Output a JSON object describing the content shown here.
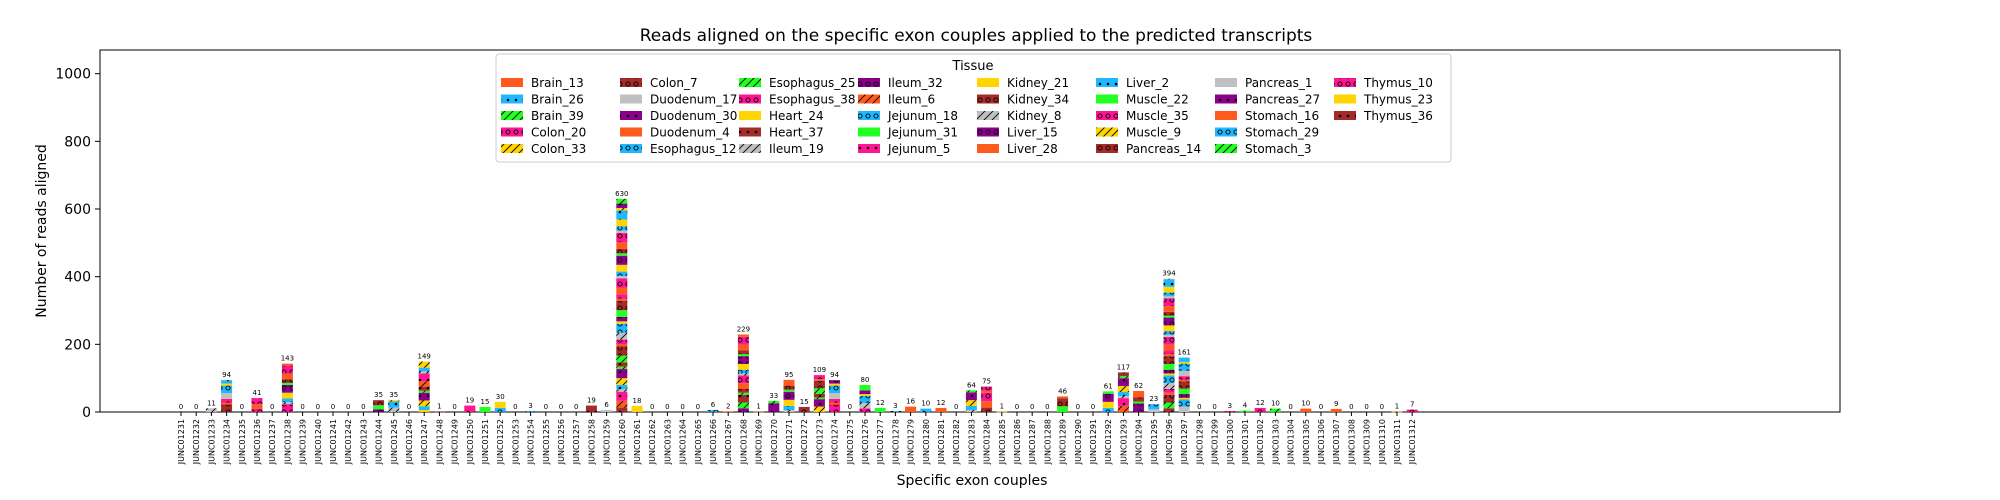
{
  "chart_data": {
    "type": "bar",
    "stacked": true,
    "title": "Reads aligned on the specific exon couples applied to the predicted transcripts",
    "xlabel": "Specific exon couples",
    "ylabel": "Number of reads aligned",
    "ylim": [
      0,
      1070
    ],
    "yticks": [
      0,
      200,
      400,
      600,
      800,
      1000
    ],
    "grid": false,
    "legend": {
      "title": "Tissue",
      "placement": "upper-center",
      "columns": 8,
      "entries": [
        {
          "name": "Brain_13",
          "color": "#ff5a1e",
          "hatch": "none"
        },
        {
          "name": "Brain_26",
          "color": "#1fb8ff",
          "hatch": "dot"
        },
        {
          "name": "Brain_39",
          "color": "#22ff22",
          "hatch": "slash"
        },
        {
          "name": "Colon_20",
          "color": "#ff1493",
          "hatch": "ring"
        },
        {
          "name": "Colon_33",
          "color": "#ffd400",
          "hatch": "slash"
        },
        {
          "name": "Colon_7",
          "color": "#a52a2a",
          "hatch": "ring"
        },
        {
          "name": "Duodenum_17",
          "color": "#c0c0c0",
          "hatch": "none"
        },
        {
          "name": "Duodenum_30",
          "color": "#8b008b",
          "hatch": "dot"
        },
        {
          "name": "Duodenum_4",
          "color": "#ff5a1e",
          "hatch": "none"
        },
        {
          "name": "Esophagus_12",
          "color": "#1fb8ff",
          "hatch": "ring"
        },
        {
          "name": "Esophagus_25",
          "color": "#22ff22",
          "hatch": "slash"
        },
        {
          "name": "Esophagus_38",
          "color": "#ff1493",
          "hatch": "ring"
        },
        {
          "name": "Heart_24",
          "color": "#ffd400",
          "hatch": "none"
        },
        {
          "name": "Heart_37",
          "color": "#a52a2a",
          "hatch": "dot"
        },
        {
          "name": "Ileum_19",
          "color": "#c0c0c0",
          "hatch": "slash"
        },
        {
          "name": "Ileum_32",
          "color": "#8b008b",
          "hatch": "ring"
        },
        {
          "name": "Ileum_6",
          "color": "#ff5a1e",
          "hatch": "slash"
        },
        {
          "name": "Jejunum_18",
          "color": "#1fb8ff",
          "hatch": "ring"
        },
        {
          "name": "Jejunum_31",
          "color": "#22ff22",
          "hatch": "none"
        },
        {
          "name": "Jejunum_5",
          "color": "#ff1493",
          "hatch": "dot"
        },
        {
          "name": "Kidney_21",
          "color": "#ffd400",
          "hatch": "none"
        },
        {
          "name": "Kidney_34",
          "color": "#a52a2a",
          "hatch": "ring"
        },
        {
          "name": "Kidney_8",
          "color": "#c0c0c0",
          "hatch": "slash"
        },
        {
          "name": "Liver_15",
          "color": "#8b008b",
          "hatch": "ring"
        },
        {
          "name": "Liver_28",
          "color": "#ff5a1e",
          "hatch": "none"
        },
        {
          "name": "Liver_2",
          "color": "#1fb8ff",
          "hatch": "dot"
        },
        {
          "name": "Muscle_22",
          "color": "#22ff22",
          "hatch": "none"
        },
        {
          "name": "Muscle_35",
          "color": "#ff1493",
          "hatch": "ring"
        },
        {
          "name": "Muscle_9",
          "color": "#ffd400",
          "hatch": "slash"
        },
        {
          "name": "Pancreas_14",
          "color": "#a52a2a",
          "hatch": "ring"
        },
        {
          "name": "Pancreas_1",
          "color": "#c0c0c0",
          "hatch": "none"
        },
        {
          "name": "Pancreas_27",
          "color": "#8b008b",
          "hatch": "dot"
        },
        {
          "name": "Stomach_16",
          "color": "#ff5a1e",
          "hatch": "none"
        },
        {
          "name": "Stomach_29",
          "color": "#1fb8ff",
          "hatch": "ring"
        },
        {
          "name": "Stomach_3",
          "color": "#22ff22",
          "hatch": "slash"
        },
        {
          "name": "Thymus_10",
          "color": "#ff1493",
          "hatch": "ring"
        },
        {
          "name": "Thymus_23",
          "color": "#ffd400",
          "hatch": "none"
        },
        {
          "name": "Thymus_36",
          "color": "#a52a2a",
          "hatch": "dot"
        }
      ]
    },
    "categories": [
      "JUNC01231",
      "JUNC01232",
      "JUNC01233",
      "JUNC01234",
      "JUNC01235",
      "JUNC01236",
      "JUNC01237",
      "JUNC01238",
      "JUNC01239",
      "JUNC01240",
      "JUNC01241",
      "JUNC01242",
      "JUNC01243",
      "JUNC01244",
      "JUNC01245",
      "JUNC01246",
      "JUNC01247",
      "JUNC01248",
      "JUNC01249",
      "JUNC01250",
      "JUNC01251",
      "JUNC01252",
      "JUNC01253",
      "JUNC01254",
      "JUNC01255",
      "JUNC01256",
      "JUNC01257",
      "JUNC01258",
      "JUNC01259",
      "JUNC01260",
      "JUNC01261",
      "JUNC01262",
      "JUNC01263",
      "JUNC01264",
      "JUNC01265",
      "JUNC01266",
      "JUNC01267",
      "JUNC01268",
      "JUNC01269",
      "JUNC01270",
      "JUNC01271",
      "JUNC01272",
      "JUNC01273",
      "JUNC01274",
      "JUNC01275",
      "JUNC01276",
      "JUNC01277",
      "JUNC01278",
      "JUNC01279",
      "JUNC01280",
      "JUNC01281",
      "JUNC01282",
      "JUNC01283",
      "JUNC01284",
      "JUNC01285",
      "JUNC01286",
      "JUNC01287",
      "JUNC01288",
      "JUNC01289",
      "JUNC01290",
      "JUNC01291",
      "JUNC01292",
      "JUNC01293",
      "JUNC01294",
      "JUNC01295",
      "JUNC01296",
      "JUNC01297",
      "JUNC01298",
      "JUNC01299",
      "JUNC01300",
      "JUNC01301",
      "JUNC01302",
      "JUNC01303",
      "JUNC01304",
      "JUNC01305",
      "JUNC01306",
      "JUNC01307",
      "JUNC01308",
      "JUNC01309",
      "JUNC01310",
      "JUNC01311",
      "JUNC01312"
    ],
    "totals": [
      0,
      0,
      11,
      94,
      0,
      41,
      0,
      143,
      0,
      0,
      0,
      0,
      0,
      35,
      35,
      0,
      149,
      1,
      0,
      19,
      15,
      30,
      0,
      3,
      0,
      0,
      0,
      19,
      6,
      630,
      18,
      0,
      0,
      0,
      0,
      6,
      2,
      229,
      1,
      33,
      95,
      15,
      109,
      94,
      0,
      80,
      12,
      3,
      16,
      10,
      12,
      0,
      64,
      75,
      1,
      0,
      0,
      0,
      46,
      0,
      0,
      61,
      117,
      62,
      23,
      394,
      161,
      0,
      0,
      3,
      4,
      12,
      10,
      0,
      10,
      0,
      9,
      0,
      0,
      0,
      1,
      7
    ]
  }
}
